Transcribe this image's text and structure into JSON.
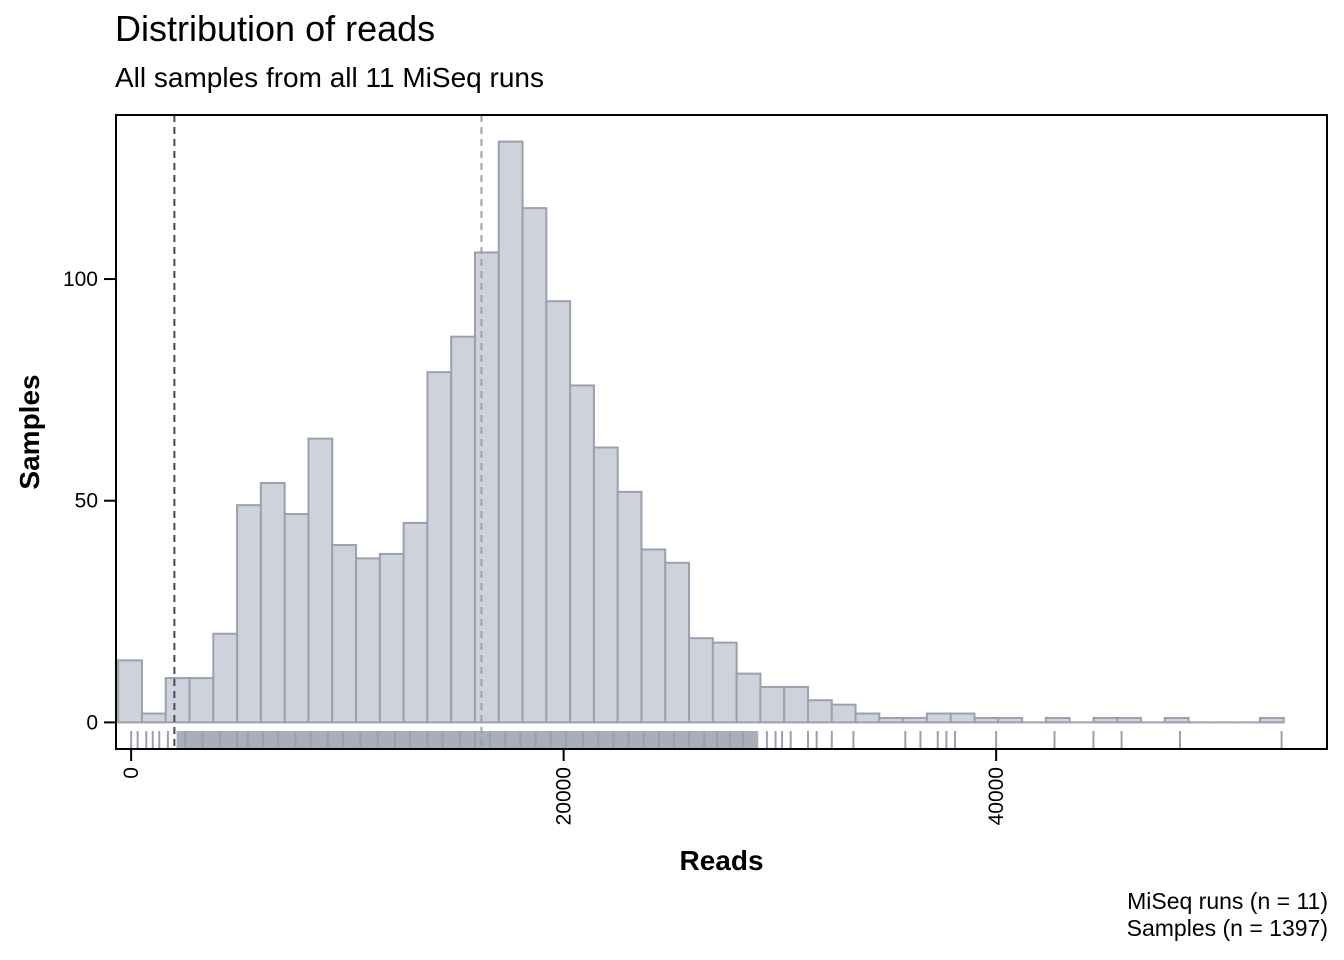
{
  "title": "Distribution of reads",
  "subtitle": "All samples from all 11 MiSeq runs",
  "caption": [
    "MiSeq runs (n = 11)",
    "Samples (n = 1397)"
  ],
  "colors": {
    "bar_fill": "#ced2da",
    "bar_stroke": "#9aa0ad",
    "rug": "#9aa0ad",
    "threshold_line": "#444a55",
    "median_line": "#9aa0ad"
  },
  "chart_data": {
    "type": "bar",
    "title": "Distribution of reads",
    "subtitle": "All samples from all 11 MiSeq runs",
    "xlabel": "Reads",
    "ylabel": "Samples",
    "xlim": [
      -700,
      55300
    ],
    "ylim": [
      -6,
      137
    ],
    "xticks": [
      0,
      20000,
      40000
    ],
    "yticks": [
      0,
      50,
      100
    ],
    "grid": false,
    "bin_width": 1100,
    "bin_starts": [
      -600,
      500,
      1600,
      2700,
      3800,
      4900,
      6000,
      7100,
      8200,
      9300,
      10400,
      11500,
      12600,
      13700,
      14800,
      15900,
      17000,
      18100,
      19200,
      20300,
      21400,
      22500,
      23600,
      24700,
      25800,
      26900,
      28000,
      29100,
      30200,
      31300,
      32400,
      33500,
      34600,
      35700,
      36800,
      37900,
      39000,
      40100,
      41200,
      42300,
      43400,
      44500,
      45600,
      46700,
      47800,
      48900,
      50000,
      51100,
      52200
    ],
    "counts": [
      14,
      2,
      10,
      10,
      20,
      49,
      54,
      47,
      64,
      40,
      37,
      38,
      45,
      79,
      87,
      106,
      131,
      116,
      95,
      76,
      62,
      52,
      39,
      36,
      19,
      18,
      11,
      8,
      8,
      5,
      4,
      2,
      1,
      1,
      2,
      2,
      1,
      1,
      0,
      1,
      0,
      1,
      1,
      0,
      1,
      0,
      0,
      0,
      1
    ],
    "vlines": [
      {
        "x": 2000,
        "style": "dashed",
        "color": "#444a55"
      },
      {
        "x": 16200,
        "style": "dashed",
        "color": "#9aa0ad"
      }
    ],
    "rug": {
      "dense_ranges": [
        [
          2100,
          29000
        ]
      ],
      "x": [
        0,
        300,
        700,
        1000,
        1300,
        1700,
        2500,
        3300,
        4100,
        4900,
        5400,
        6100,
        6800,
        7600,
        8300,
        9100,
        9800,
        10600,
        11400,
        12200,
        12900,
        13700,
        14400,
        15200,
        15900,
        16600,
        17300,
        18000,
        18700,
        19400,
        20100,
        20900,
        21600,
        22300,
        23000,
        23700,
        24400,
        25100,
        25800,
        26500,
        27100,
        27700,
        28300,
        29400,
        29800,
        30100,
        30500,
        31300,
        31700,
        32400,
        33400,
        35800,
        36500,
        37300,
        37700,
        38100,
        40000,
        42700,
        44500,
        45800,
        48500,
        53200
      ]
    }
  }
}
